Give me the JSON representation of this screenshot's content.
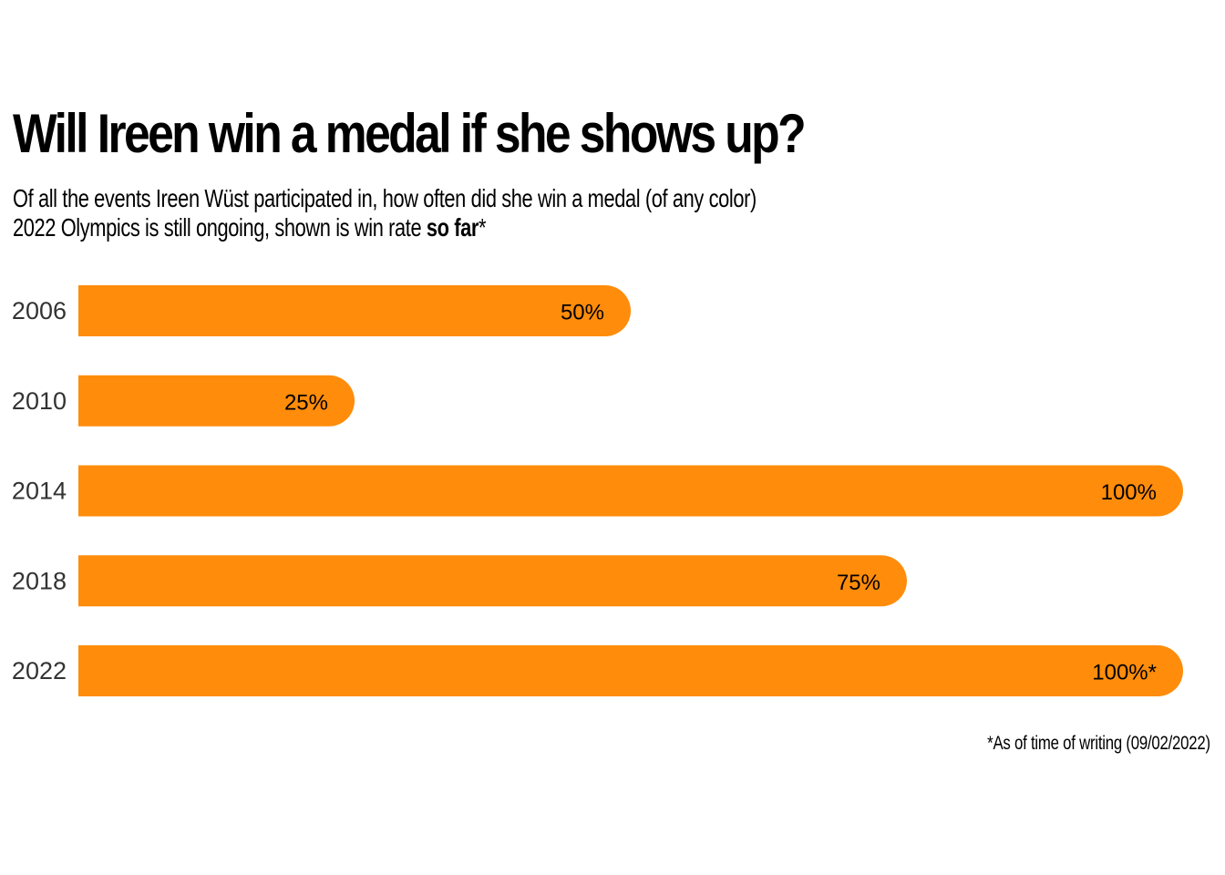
{
  "chart_data": {
    "type": "bar",
    "orientation": "horizontal",
    "title": "Will Ireen win a medal if she shows up?",
    "subtitle_line1": "Of all the events Ireen Wüst participated in, how often did she win a medal (of any color)",
    "subtitle_line2_prefix": "2022 Olympics is still ongoing, shown is win rate ",
    "subtitle_line2_bold": "so far",
    "subtitle_line2_suffix": "*",
    "categories": [
      "2006",
      "2010",
      "2014",
      "2018",
      "2022"
    ],
    "values": [
      50,
      25,
      100,
      75,
      100
    ],
    "labels": [
      "50%",
      "25%",
      "100%",
      "75%",
      "100%*"
    ],
    "xlim": [
      0,
      100
    ],
    "grid": false,
    "bar_color": "#FF8C0A",
    "footnote": "*As of time of writing (09/02/2022)"
  }
}
